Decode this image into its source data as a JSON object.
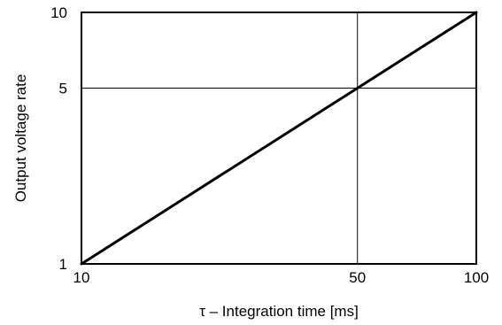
{
  "chart_data": {
    "type": "line",
    "title": "",
    "xlabel": "τ – Integration time [ms]",
    "ylabel": "Output voltage rate",
    "x_scale": "log",
    "y_scale": "log",
    "xlim": [
      10,
      100
    ],
    "ylim": [
      1,
      10
    ],
    "x_ticks": [
      {
        "value": 10,
        "label": "10"
      },
      {
        "value": 50,
        "label": "50"
      },
      {
        "value": 100,
        "label": "100"
      }
    ],
    "y_ticks": [
      {
        "value": 1,
        "label": "1"
      },
      {
        "value": 5,
        "label": "5"
      },
      {
        "value": 10,
        "label": "10"
      }
    ],
    "grid_x": [
      50
    ],
    "grid_y": [
      5
    ],
    "grid": true,
    "legend": "none",
    "series": [
      {
        "color": "#000000",
        "x": [
          10,
          50,
          100
        ],
        "y": [
          1,
          5,
          10
        ]
      }
    ]
  }
}
